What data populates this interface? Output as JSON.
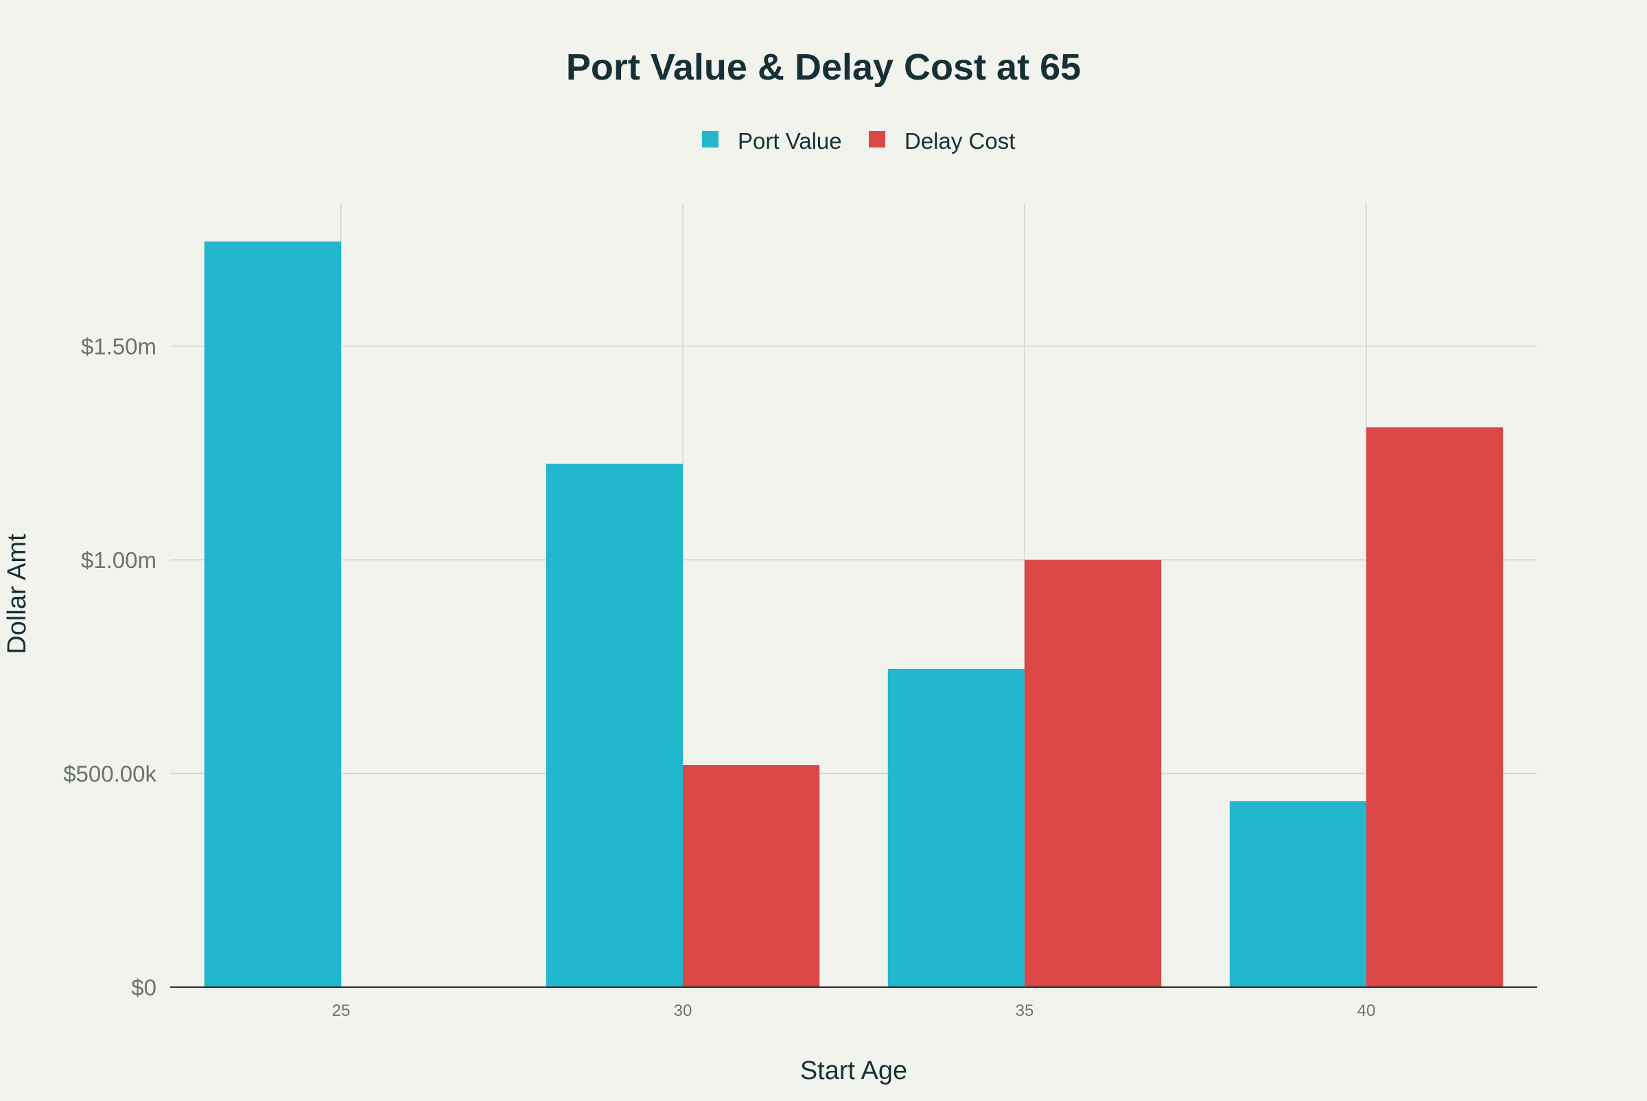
{
  "chart_data": {
    "type": "bar",
    "title": "Port Value & Delay Cost at 65",
    "xlabel": "Start Age",
    "ylabel": "Dollar Amt",
    "categories": [
      "25",
      "30",
      "35",
      "40"
    ],
    "series": [
      {
        "name": "Port Value",
        "color": "#22b7cc",
        "values": [
          1745000,
          1225000,
          745000,
          435000
        ]
      },
      {
        "name": "Delay Cost",
        "color": "#db4646",
        "values": [
          0,
          520000,
          1000000,
          1310000
        ]
      }
    ],
    "ylim": [
      0,
      1835000
    ],
    "yticks": [
      {
        "value": 0,
        "label": "$0"
      },
      {
        "value": 500000,
        "label": "$500.00k"
      },
      {
        "value": 1000000,
        "label": "$1.00m"
      },
      {
        "value": 1500000,
        "label": "$1.50m"
      }
    ],
    "grid": true,
    "legend_position": "top-center"
  }
}
